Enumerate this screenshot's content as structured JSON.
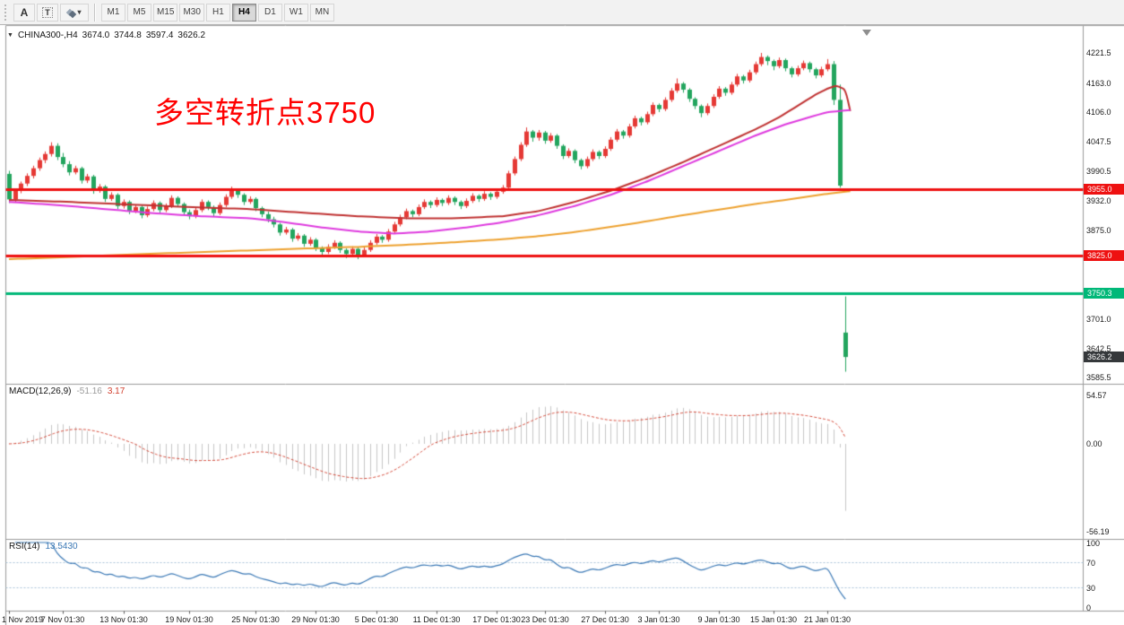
{
  "toolbar": {
    "tools": [
      {
        "name": "annotate-text",
        "glyph": "A"
      },
      {
        "name": "text-label",
        "glyph": "T"
      },
      {
        "name": "objects",
        "glyph": "",
        "dropdown": "▾"
      }
    ],
    "timeframes": [
      {
        "label": "M1",
        "active": false
      },
      {
        "label": "M5",
        "active": false
      },
      {
        "label": "M15",
        "active": false
      },
      {
        "label": "M30",
        "active": false
      },
      {
        "label": "H1",
        "active": false
      },
      {
        "label": "H4",
        "active": true
      },
      {
        "label": "D1",
        "active": false
      },
      {
        "label": "W1",
        "active": false
      },
      {
        "label": "MN",
        "active": false
      }
    ]
  },
  "header": {
    "dropdown": "▼",
    "symbol_period": "CHINA300-,H4",
    "open": "3674.0",
    "high": "3744.8",
    "low": "3597.4",
    "close": "3626.2"
  },
  "annotation": {
    "text": "多空转折点3750",
    "color": "#ff0000"
  },
  "chart_data": {
    "type": "candlestick",
    "symbol": "CHINA300-",
    "timeframe": "H4",
    "candle_colors": {
      "bull": "#e53935",
      "bear": "#23a55e"
    },
    "price_axis": {
      "max": 4276.5,
      "min": 3573.7,
      "ticks": [
        "4221.5",
        "4163.0",
        "4106.0",
        "4047.5",
        "3990.5",
        "3932.0",
        "3875.0",
        "3701.0",
        "3642.5",
        "3585.5"
      ]
    },
    "hlines": [
      {
        "price": 3955.0,
        "label": "3955.0",
        "color": "#ee1111"
      },
      {
        "price": 3825.0,
        "label": "3825.0",
        "color": "#ee1111"
      },
      {
        "price": 3750.3,
        "label": "3750.3",
        "color": "#00b878"
      }
    ],
    "current_price": {
      "price": 3626.2,
      "label": "3626.2",
      "color": "#35383b"
    },
    "moving_averages": [
      {
        "name": "ma-red",
        "color": "#bf3131",
        "width": 2,
        "anchors": [
          [
            0,
            3934
          ],
          [
            10,
            3930
          ],
          [
            20,
            3925
          ],
          [
            30,
            3920
          ],
          [
            40,
            3916
          ],
          [
            50,
            3908
          ],
          [
            58,
            3902
          ],
          [
            66,
            3898
          ],
          [
            74,
            3898
          ],
          [
            82,
            3902
          ],
          [
            88,
            3912
          ],
          [
            94,
            3930
          ],
          [
            100,
            3952
          ],
          [
            106,
            3978
          ],
          [
            112,
            4008
          ],
          [
            118,
            4040
          ],
          [
            124,
            4072
          ],
          [
            128,
            4096
          ],
          [
            131,
            4118
          ],
          [
            134,
            4140
          ],
          [
            136,
            4152
          ],
          [
            137.5,
            4158
          ],
          [
            139,
            4150
          ],
          [
            139.8,
            4108
          ]
        ]
      },
      {
        "name": "ma-magenta",
        "color": "#de3ade",
        "width": 2,
        "anchors": [
          [
            0,
            3930
          ],
          [
            8,
            3924
          ],
          [
            16,
            3916
          ],
          [
            24,
            3908
          ],
          [
            32,
            3902
          ],
          [
            40,
            3898
          ],
          [
            46,
            3890
          ],
          [
            52,
            3880
          ],
          [
            58,
            3872
          ],
          [
            64,
            3868
          ],
          [
            70,
            3872
          ],
          [
            76,
            3880
          ],
          [
            82,
            3890
          ],
          [
            88,
            3904
          ],
          [
            94,
            3922
          ],
          [
            100,
            3944
          ],
          [
            106,
            3970
          ],
          [
            112,
            4000
          ],
          [
            118,
            4030
          ],
          [
            124,
            4060
          ],
          [
            129,
            4082
          ],
          [
            133,
            4096
          ],
          [
            136,
            4106
          ],
          [
            139.8,
            4110
          ]
        ]
      },
      {
        "name": "ma-orange",
        "color": "#eda12f",
        "width": 2,
        "anchors": [
          [
            0,
            3818
          ],
          [
            10,
            3822
          ],
          [
            20,
            3827
          ],
          [
            30,
            3831
          ],
          [
            40,
            3835
          ],
          [
            50,
            3839
          ],
          [
            58,
            3842
          ],
          [
            66,
            3846
          ],
          [
            74,
            3851
          ],
          [
            82,
            3857
          ],
          [
            88,
            3863
          ],
          [
            94,
            3871
          ],
          [
            100,
            3881
          ],
          [
            106,
            3892
          ],
          [
            112,
            3904
          ],
          [
            118,
            3915
          ],
          [
            124,
            3926
          ],
          [
            129,
            3934
          ],
          [
            133,
            3941
          ],
          [
            136,
            3946
          ],
          [
            139.8,
            3951
          ]
        ]
      }
    ],
    "time_labels": [
      {
        "label": "1 Nov 2019",
        "index": 0
      },
      {
        "label": "7 Nov 01:30",
        "index": 9
      },
      {
        "label": "13 Nov 01:30",
        "index": 19
      },
      {
        "label": "19 Nov 01:30",
        "index": 30
      },
      {
        "label": "25 Nov 01:30",
        "index": 41
      },
      {
        "label": "29 Nov 01:30",
        "index": 51
      },
      {
        "label": "5 Dec 01:30",
        "index": 61
      },
      {
        "label": "11 Dec 01:30",
        "index": 71
      },
      {
        "label": "17 Dec 01:30",
        "index": 81
      },
      {
        "label": "23 Dec 01:30",
        "index": 89
      },
      {
        "label": "27 Dec 01:30",
        "index": 99
      },
      {
        "label": "3 Jan 01:30",
        "index": 108
      },
      {
        "label": "9 Jan 01:30",
        "index": 118
      },
      {
        "label": "15 Jan 01:30",
        "index": 127
      },
      {
        "label": "21 Jan 01:30",
        "index": 136
      }
    ],
    "macd": {
      "label": "MACD(12,26,9)",
      "fast": 12,
      "slow": 26,
      "signal": 9,
      "value": "-51.16",
      "signal_value": "3.17",
      "axis": [
        "54.57",
        "0.00",
        "-56.19"
      ],
      "hist_color": "#c6c6c6",
      "signal_color": "#d2402f"
    },
    "rsi": {
      "label": "RSI(14)",
      "period": 14,
      "value": "13.5430",
      "axis": [
        "100",
        "70",
        "30",
        "0"
      ],
      "levels": [
        70,
        30
      ],
      "color": "#3a78b5",
      "level_color": "#a9c2d8"
    },
    "ohlc": [
      [
        3985,
        3991,
        3928,
        3935
      ],
      [
        3935,
        3956,
        3930,
        3952
      ],
      [
        3952,
        3970,
        3947,
        3966
      ],
      [
        3966,
        3986,
        3961,
        3981
      ],
      [
        3981,
        4001,
        3976,
        3996
      ],
      [
        3996,
        4017,
        3991,
        4012
      ],
      [
        4012,
        4029,
        4006,
        4024
      ],
      [
        4024,
        4047,
        4019,
        4040
      ],
      [
        4040,
        4045,
        4012,
        4018
      ],
      [
        4018,
        4026,
        3998,
        4004
      ],
      [
        4004,
        4010,
        3982,
        3988
      ],
      [
        3988,
        4001,
        3984,
        3996
      ],
      [
        3996,
        3999,
        3966,
        3972
      ],
      [
        3972,
        3985,
        3967,
        3980
      ],
      [
        3980,
        3983,
        3946,
        3952
      ],
      [
        3952,
        3965,
        3948,
        3960
      ],
      [
        3960,
        3963,
        3930,
        3936
      ],
      [
        3936,
        3949,
        3932,
        3944
      ],
      [
        3944,
        3947,
        3916,
        3922
      ],
      [
        3922,
        3935,
        3917,
        3930
      ],
      [
        3930,
        3933,
        3906,
        3912
      ],
      [
        3912,
        3925,
        3908,
        3920
      ],
      [
        3920,
        3923,
        3898,
        3904
      ],
      [
        3904,
        3921,
        3900,
        3916
      ],
      [
        3916,
        3933,
        3912,
        3928
      ],
      [
        3928,
        3931,
        3908,
        3914
      ],
      [
        3914,
        3927,
        3910,
        3922
      ],
      [
        3922,
        3943,
        3918,
        3938
      ],
      [
        3938,
        3941,
        3920,
        3926
      ],
      [
        3926,
        3929,
        3904,
        3910
      ],
      [
        3910,
        3915,
        3896,
        3902
      ],
      [
        3902,
        3919,
        3898,
        3914
      ],
      [
        3914,
        3935,
        3910,
        3930
      ],
      [
        3930,
        3933,
        3914,
        3920
      ],
      [
        3920,
        3923,
        3902,
        3908
      ],
      [
        3908,
        3929,
        3904,
        3924
      ],
      [
        3924,
        3945,
        3920,
        3940
      ],
      [
        3940,
        3960,
        3936,
        3952
      ],
      [
        3952,
        3955,
        3938,
        3944
      ],
      [
        3944,
        3947,
        3924,
        3930
      ],
      [
        3930,
        3941,
        3926,
        3936
      ],
      [
        3936,
        3939,
        3912,
        3918
      ],
      [
        3918,
        3921,
        3900,
        3906
      ],
      [
        3906,
        3911,
        3890,
        3896
      ],
      [
        3896,
        3901,
        3880,
        3886
      ],
      [
        3886,
        3889,
        3864,
        3870
      ],
      [
        3870,
        3881,
        3866,
        3876
      ],
      [
        3876,
        3879,
        3852,
        3858
      ],
      [
        3858,
        3869,
        3854,
        3864
      ],
      [
        3864,
        3867,
        3842,
        3848
      ],
      [
        3848,
        3861,
        3844,
        3856
      ],
      [
        3856,
        3859,
        3834,
        3840
      ],
      [
        3840,
        3843,
        3824,
        3832
      ],
      [
        3832,
        3847,
        3828,
        3842
      ],
      [
        3842,
        3855,
        3838,
        3850
      ],
      [
        3850,
        3853,
        3830,
        3836
      ],
      [
        3836,
        3839,
        3820,
        3828
      ],
      [
        3828,
        3843,
        3824,
        3838
      ],
      [
        3838,
        3841,
        3818,
        3826
      ],
      [
        3826,
        3841,
        3822,
        3836
      ],
      [
        3836,
        3855,
        3832,
        3850
      ],
      [
        3850,
        3867,
        3846,
        3862
      ],
      [
        3862,
        3865,
        3850,
        3856
      ],
      [
        3856,
        3877,
        3852,
        3872
      ],
      [
        3872,
        3891,
        3868,
        3886
      ],
      [
        3886,
        3905,
        3882,
        3900
      ],
      [
        3900,
        3917,
        3896,
        3912
      ],
      [
        3912,
        3915,
        3900,
        3906
      ],
      [
        3906,
        3925,
        3902,
        3920
      ],
      [
        3920,
        3935,
        3916,
        3930
      ],
      [
        3930,
        3933,
        3918,
        3924
      ],
      [
        3924,
        3939,
        3920,
        3934
      ],
      [
        3934,
        3937,
        3922,
        3928
      ],
      [
        3928,
        3943,
        3924,
        3938
      ],
      [
        3938,
        3941,
        3924,
        3930
      ],
      [
        3930,
        3933,
        3916,
        3922
      ],
      [
        3922,
        3937,
        3918,
        3932
      ],
      [
        3932,
        3947,
        3928,
        3942
      ],
      [
        3942,
        3945,
        3930,
        3936
      ],
      [
        3936,
        3951,
        3932,
        3946
      ],
      [
        3946,
        3949,
        3934,
        3940
      ],
      [
        3940,
        3955,
        3936,
        3950
      ],
      [
        3950,
        3963,
        3946,
        3958
      ],
      [
        3958,
        3991,
        3954,
        3986
      ],
      [
        3986,
        4019,
        3982,
        4014
      ],
      [
        4014,
        4047,
        4010,
        4042
      ],
      [
        4042,
        4076,
        4038,
        4068
      ],
      [
        4068,
        4071,
        4048,
        4056
      ],
      [
        4056,
        4071,
        4050,
        4066
      ],
      [
        4066,
        4069,
        4044,
        4050
      ],
      [
        4050,
        4065,
        4046,
        4060
      ],
      [
        4060,
        4063,
        4034,
        4040
      ],
      [
        4040,
        4043,
        4014,
        4020
      ],
      [
        4020,
        4035,
        4016,
        4030
      ],
      [
        4030,
        4033,
        4006,
        4012
      ],
      [
        4012,
        4015,
        3994,
        4000
      ],
      [
        4000,
        4019,
        3996,
        4014
      ],
      [
        4014,
        4033,
        4010,
        4028
      ],
      [
        4028,
        4031,
        4014,
        4020
      ],
      [
        4020,
        4039,
        4016,
        4034
      ],
      [
        4034,
        4057,
        4030,
        4052
      ],
      [
        4052,
        4073,
        4048,
        4068
      ],
      [
        4068,
        4071,
        4054,
        4060
      ],
      [
        4060,
        4083,
        4056,
        4078
      ],
      [
        4078,
        4099,
        4074,
        4094
      ],
      [
        4094,
        4097,
        4080,
        4086
      ],
      [
        4086,
        4107,
        4082,
        4102
      ],
      [
        4102,
        4125,
        4098,
        4120
      ],
      [
        4120,
        4123,
        4106,
        4112
      ],
      [
        4112,
        4135,
        4108,
        4130
      ],
      [
        4130,
        4153,
        4126,
        4148
      ],
      [
        4148,
        4172,
        4144,
        4162
      ],
      [
        4162,
        4165,
        4144,
        4150
      ],
      [
        4150,
        4153,
        4126,
        4132
      ],
      [
        4132,
        4135,
        4112,
        4118
      ],
      [
        4118,
        4121,
        4096,
        4104
      ],
      [
        4104,
        4123,
        4100,
        4118
      ],
      [
        4118,
        4141,
        4114,
        4136
      ],
      [
        4136,
        4157,
        4132,
        4152
      ],
      [
        4152,
        4155,
        4138,
        4144
      ],
      [
        4144,
        4165,
        4140,
        4160
      ],
      [
        4160,
        4181,
        4156,
        4176
      ],
      [
        4176,
        4179,
        4162,
        4168
      ],
      [
        4168,
        4189,
        4164,
        4184
      ],
      [
        4184,
        4205,
        4180,
        4200
      ],
      [
        4200,
        4222,
        4196,
        4214
      ],
      [
        4214,
        4217,
        4198,
        4206
      ],
      [
        4206,
        4209,
        4188,
        4196
      ],
      [
        4196,
        4213,
        4192,
        4208
      ],
      [
        4208,
        4211,
        4186,
        4192
      ],
      [
        4192,
        4195,
        4174,
        4180
      ],
      [
        4180,
        4197,
        4176,
        4192
      ],
      [
        4192,
        4207,
        4188,
        4202
      ],
      [
        4202,
        4205,
        4184,
        4190
      ],
      [
        4190,
        4193,
        4172,
        4178
      ],
      [
        4178,
        4195,
        4174,
        4190
      ],
      [
        4190,
        4210,
        4186,
        4200
      ],
      [
        4200,
        4206,
        4120,
        4130
      ],
      [
        4130,
        4160,
        3958,
        3962
      ],
      [
        3674,
        3744.8,
        3597.4,
        3626.2
      ]
    ]
  }
}
